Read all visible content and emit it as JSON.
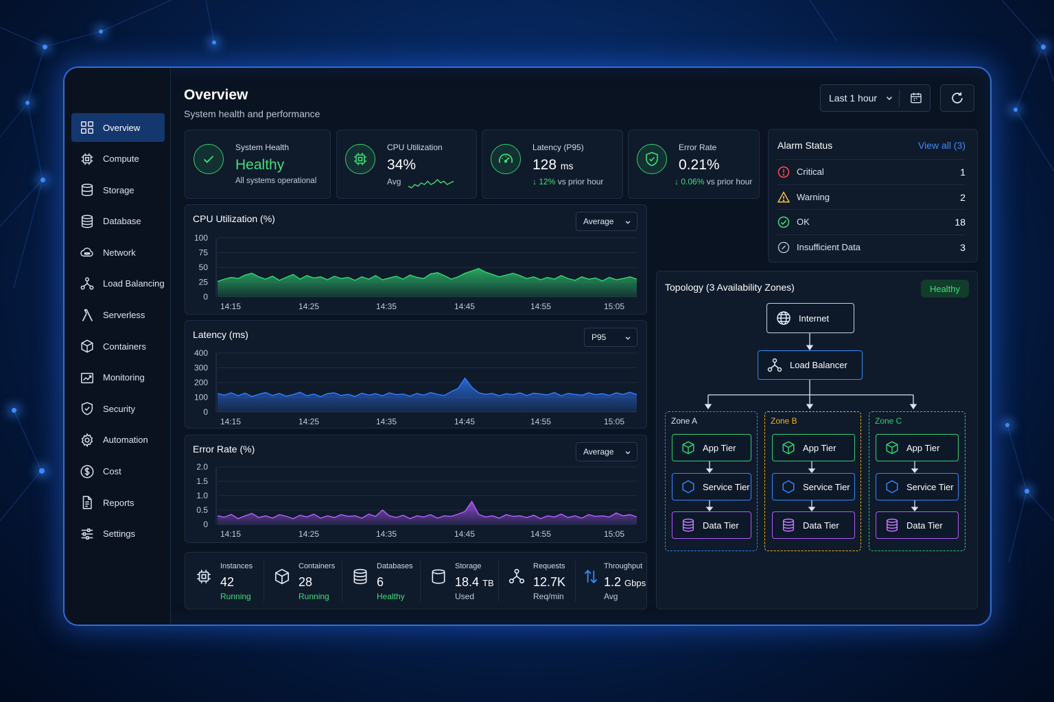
{
  "header": {
    "title": "Overview",
    "subtitle": "System health and performance",
    "time_range": "Last 1 hour"
  },
  "sidebar": {
    "items": [
      {
        "label": "Overview",
        "icon": "grid-icon",
        "active": true
      },
      {
        "label": "Compute",
        "icon": "chip-icon"
      },
      {
        "label": "Storage",
        "icon": "storage-icon"
      },
      {
        "label": "Database",
        "icon": "database-icon"
      },
      {
        "label": "Network",
        "icon": "cloud-network-icon"
      },
      {
        "label": "Load Balancing",
        "icon": "load-balancer-icon"
      },
      {
        "label": "Serverless",
        "icon": "lambda-icon"
      },
      {
        "label": "Containers",
        "icon": "cube-icon"
      },
      {
        "label": "Monitoring",
        "icon": "monitoring-icon"
      },
      {
        "label": "Security",
        "icon": "shield-icon"
      },
      {
        "label": "Automation",
        "icon": "gear-icon"
      },
      {
        "label": "Cost",
        "icon": "dollar-icon"
      },
      {
        "label": "Reports",
        "icon": "report-icon"
      },
      {
        "label": "Settings",
        "icon": "sliders-icon"
      }
    ]
  },
  "kpis": {
    "health": {
      "label": "System Health",
      "value": "Healthy",
      "foot": "All systems operational"
    },
    "cpu": {
      "label": "CPU Utilization",
      "value": "34%",
      "foot": "Avg",
      "sparkline": [
        5,
        4,
        6,
        5,
        7,
        6,
        8,
        6,
        7,
        9,
        7,
        8,
        6,
        7,
        8
      ]
    },
    "latency": {
      "label": "Latency (P95)",
      "value": "128",
      "unit": "ms",
      "delta": "12%",
      "delta_text": "vs prior hour"
    },
    "error": {
      "label": "Error Rate",
      "value": "0.21%",
      "delta": "0.06%",
      "delta_text": "vs prior hour"
    }
  },
  "alarms": {
    "title": "Alarm Status",
    "link": "View all (3)",
    "rows": [
      {
        "label": "Critical",
        "count": "1",
        "color": "#ff4d4f"
      },
      {
        "label": "Warning",
        "count": "2",
        "color": "#ffc53d"
      },
      {
        "label": "OK",
        "count": "18",
        "color": "#3ee07a"
      },
      {
        "label": "Insufficient Data",
        "count": "3",
        "color": "#c2ccdb"
      }
    ]
  },
  "chart_data": [
    {
      "type": "area",
      "title": "CPU Utilization (%)",
      "selector": "Average",
      "ylim": [
        0,
        100
      ],
      "yticks": [
        "100",
        "75",
        "50",
        "25",
        "0"
      ],
      "xticks": [
        "14:15",
        "14:25",
        "14:35",
        "14:45",
        "14:55",
        "15:05"
      ],
      "color": "#2fd36e",
      "values": [
        26,
        30,
        33,
        31,
        37,
        40,
        34,
        30,
        35,
        28,
        33,
        38,
        30,
        36,
        32,
        34,
        29,
        35,
        31,
        33,
        28,
        34,
        30,
        36,
        29,
        32,
        35,
        30,
        37,
        33,
        31,
        39,
        41,
        36,
        30,
        34,
        40,
        44,
        48,
        42,
        38,
        34,
        37,
        40,
        36,
        31,
        34,
        29,
        33,
        30,
        36,
        31,
        28,
        34,
        30,
        32,
        27,
        33,
        29,
        31,
        34,
        30
      ]
    },
    {
      "type": "area",
      "title": "Latency (ms)",
      "selector": "P95",
      "ylim": [
        0,
        400
      ],
      "yticks": [
        "400",
        "300",
        "200",
        "100",
        "0"
      ],
      "xticks": [
        "14:15",
        "14:25",
        "14:35",
        "14:45",
        "14:55",
        "15:05"
      ],
      "color": "#2f7bff",
      "values": [
        125,
        115,
        130,
        110,
        128,
        105,
        120,
        132,
        112,
        126,
        108,
        118,
        134,
        110,
        122,
        104,
        125,
        130,
        112,
        120,
        106,
        128,
        115,
        124,
        110,
        130,
        118,
        122,
        108,
        126,
        114,
        132,
        120,
        112,
        138,
        160,
        230,
        168,
        130,
        120,
        126,
        110,
        124,
        118,
        130,
        112,
        128,
        122,
        116,
        132,
        110,
        126,
        120,
        114,
        130,
        118,
        124,
        112,
        130,
        120,
        134,
        118
      ]
    },
    {
      "type": "area",
      "title": "Error Rate (%)",
      "selector": "Average",
      "ylim": [
        0,
        2
      ],
      "yticks": [
        "2.0",
        "1.5",
        "1.0",
        "0.5",
        "0"
      ],
      "xticks": [
        "14:15",
        "14:25",
        "14:35",
        "14:45",
        "14:55",
        "15:05"
      ],
      "color": "#b25cff",
      "values": [
        0.3,
        0.25,
        0.35,
        0.2,
        0.3,
        0.38,
        0.24,
        0.3,
        0.22,
        0.34,
        0.28,
        0.2,
        0.32,
        0.26,
        0.36,
        0.22,
        0.3,
        0.24,
        0.34,
        0.28,
        0.3,
        0.22,
        0.36,
        0.28,
        0.5,
        0.3,
        0.24,
        0.32,
        0.2,
        0.3,
        0.26,
        0.34,
        0.22,
        0.3,
        0.28,
        0.36,
        0.45,
        0.8,
        0.35,
        0.26,
        0.3,
        0.22,
        0.34,
        0.28,
        0.3,
        0.24,
        0.32,
        0.2,
        0.3,
        0.26,
        0.36,
        0.24,
        0.3,
        0.22,
        0.34,
        0.28,
        0.3,
        0.26,
        0.4,
        0.3,
        0.34,
        0.26
      ]
    }
  ],
  "topology": {
    "title": "Topology (3 Availability Zones)",
    "status": "Healthy",
    "internet": "Internet",
    "load_balancer": "Load Balancer",
    "zones": [
      {
        "name": "Zone A",
        "color": "#2f8cff"
      },
      {
        "name": "Zone B",
        "color": "#f2b51c"
      },
      {
        "name": "Zone C",
        "color": "#2fd36e"
      }
    ],
    "tiers": {
      "app": "App Tier",
      "service": "Service Tier",
      "data": "Data Tier"
    }
  },
  "stats": [
    {
      "label": "Instances",
      "value": "42",
      "unit": "",
      "foot": "Running",
      "green": true,
      "icon": "chip-icon"
    },
    {
      "label": "Containers",
      "value": "28",
      "unit": "",
      "foot": "Running",
      "green": true,
      "icon": "cube-icon"
    },
    {
      "label": "Databases",
      "value": "6",
      "unit": "",
      "foot": "Healthy",
      "green": true,
      "icon": "database-icon"
    },
    {
      "label": "Storage",
      "value": "18.4",
      "unit": "TB",
      "foot": "Used",
      "green": false,
      "icon": "storage-icon"
    },
    {
      "label": "Requests",
      "value": "12.7K",
      "unit": "",
      "foot": "Req/min",
      "green": false,
      "icon": "network-nodes-icon"
    },
    {
      "label": "Throughput",
      "value": "1.2",
      "unit": "Gbps",
      "foot": "Avg",
      "green": false,
      "icon": "transfer-arrows-icon"
    }
  ]
}
